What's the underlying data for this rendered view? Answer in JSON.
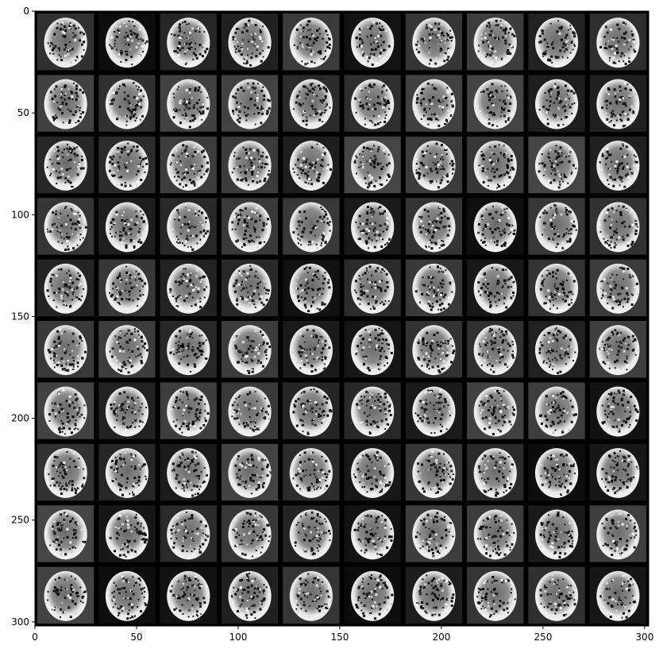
{
  "figure": {
    "description_type": "image grid of generated brain MRI slices (10x10)",
    "grid": {
      "rows": 10,
      "cols": 10
    },
    "x_axis": {
      "range": [
        0,
        302
      ],
      "ticks": [
        0,
        50,
        100,
        150,
        200,
        250,
        300
      ],
      "tick_labels": [
        "0",
        "50",
        "100",
        "150",
        "200",
        "250",
        "300"
      ]
    },
    "y_axis": {
      "range": [
        0,
        302
      ],
      "ticks": [
        0,
        50,
        100,
        150,
        200,
        250,
        300
      ],
      "tick_labels": [
        "0",
        "50",
        "100",
        "150",
        "200",
        "250",
        "300"
      ]
    },
    "colors": {
      "background": "#000000",
      "frame": "#000000",
      "page": "#ffffff"
    },
    "colormap": "gray"
  }
}
